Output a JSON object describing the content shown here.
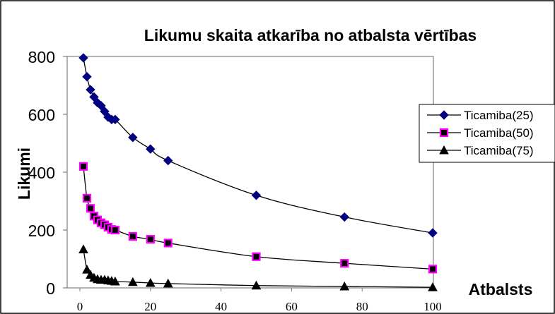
{
  "chart_data": {
    "type": "line",
    "title": "Likumu skaita atkarība no atbalsta vērtības",
    "xlabel": "Atbalsts",
    "ylabel": "Likumi",
    "xlim": [
      0,
      100
    ],
    "ylim": [
      0,
      800
    ],
    "xticks": [
      0,
      20,
      40,
      60,
      80,
      100
    ],
    "yticks": [
      0,
      200,
      400,
      600,
      800
    ],
    "grid": false,
    "legend_position": "right",
    "x": [
      1,
      2,
      3,
      4,
      5,
      6,
      7,
      8,
      9,
      10,
      15,
      20,
      25,
      50,
      75,
      100
    ],
    "series": [
      {
        "name": "Ticamiba(25)",
        "marker": "diamond",
        "color": "#000080",
        "values": [
          795,
          730,
          685,
          660,
          640,
          630,
          610,
          590,
          582,
          582,
          520,
          480,
          440,
          320,
          245,
          190
        ]
      },
      {
        "name": "Ticamiba(50)",
        "marker": "square",
        "color": "#ff00ff",
        "values": [
          420,
          310,
          275,
          248,
          235,
          225,
          218,
          210,
          202,
          200,
          178,
          168,
          155,
          108,
          85,
          65
        ]
      },
      {
        "name": "Ticamiba(75)",
        "marker": "triangle",
        "color": "#000000",
        "values": [
          133,
          63,
          45,
          35,
          30,
          28,
          28,
          26,
          24,
          22,
          20,
          17,
          15,
          8,
          5,
          2
        ]
      }
    ]
  }
}
